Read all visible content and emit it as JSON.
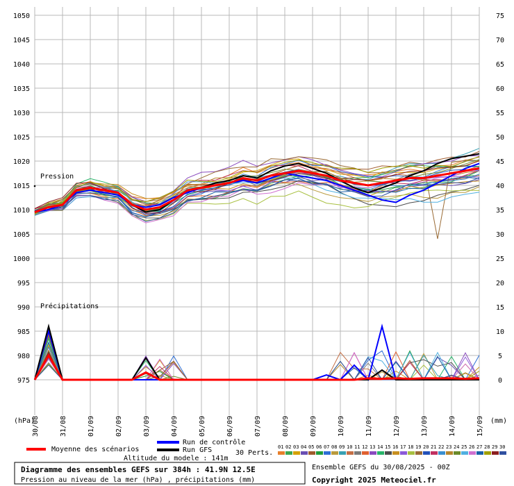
{
  "chart_data": {
    "type": "line",
    "title": "Diagramme des ensembles GEFS sur 384h : 41.9N 12.5E",
    "subtitle": "Pression au niveau de la mer (hPa) , précipitations (mm)",
    "run_info": "Ensemble GEFS du 30/08/2025 - 00Z",
    "copyright": "Copyright 2025 Meteociel.fr",
    "model_altitude": "Altitude du modele : 141m",
    "panel_labels": {
      "pressure": "Pression",
      "precip": "Précipitations"
    },
    "y_left_unit": "(hPa)",
    "y_right_unit": "(mm)",
    "y_left_ticks": [
      975,
      980,
      985,
      990,
      995,
      1000,
      1005,
      1010,
      1015,
      1020,
      1025,
      1030,
      1035,
      1040,
      1045,
      1050
    ],
    "y_right_ticks": [
      0,
      5,
      10,
      15,
      20,
      25,
      30,
      35,
      40,
      45,
      50,
      55,
      60,
      65,
      70,
      75
    ],
    "y_left_range": [
      975,
      1050
    ],
    "y_right_range": [
      0,
      75
    ],
    "x_dates": [
      "30/08",
      "31/08",
      "01/09",
      "02/09",
      "03/09",
      "04/09",
      "05/09",
      "06/09",
      "07/09",
      "08/09",
      "09/09",
      "10/09",
      "11/09",
      "12/09",
      "13/09",
      "14/09",
      "15/09"
    ],
    "grid": true,
    "legend": {
      "mean": "Moyenne des scénarios",
      "control": "Run de contrôle",
      "gfs": "Run GFS",
      "perts": "30 Perts."
    },
    "pert_labels": [
      "01",
      "02",
      "03",
      "04",
      "05",
      "06",
      "07",
      "08",
      "09",
      "10",
      "11",
      "12",
      "13",
      "14",
      "15",
      "16",
      "17",
      "18",
      "19",
      "20",
      "21",
      "22",
      "23",
      "24",
      "25",
      "26",
      "27",
      "28",
      "29",
      "30"
    ],
    "pert_colors": [
      "#e87f2b",
      "#3ca650",
      "#d4a100",
      "#6a4fb3",
      "#a05a2c",
      "#1f9c3a",
      "#2d6fd6",
      "#b99a3d",
      "#38a0b3",
      "#c46f46",
      "#7a7a7a",
      "#e06030",
      "#8a4bbf",
      "#28b46a",
      "#4d4d4d",
      "#c89020",
      "#8c5ad8",
      "#a8c040",
      "#9a6b35",
      "#2250b8",
      "#c03060",
      "#3a8fd0",
      "#b6862c",
      "#6c8a2a",
      "#50b0e0",
      "#d070d0",
      "#1a5fa8",
      "#a0a000",
      "#8b1f1f",
      "#3050a0"
    ],
    "series_colors": {
      "mean": "#ff0000",
      "control": "#0000ff",
      "gfs": "#000000"
    },
    "series": [
      {
        "name": "Moyenne des scénarios",
        "pressure": [
          1009.5,
          1010.5,
          1011,
          1014,
          1014.5,
          1014,
          1013.5,
          1011,
          1010,
          1010.5,
          1012,
          1014,
          1014.5,
          1015,
          1015.5,
          1016.5,
          1016,
          1017,
          1017.5,
          1018,
          1017.5,
          1017,
          1016,
          1015.5,
          1015,
          1015.5,
          1016,
          1016.5,
          1016.5,
          1017,
          1017.5,
          1018,
          1018.5
        ],
        "precip": [
          0,
          5,
          0,
          0,
          0,
          0,
          0,
          0,
          1.5,
          0,
          0,
          0,
          0,
          0,
          0,
          0,
          0,
          0,
          0,
          0,
          0,
          0,
          0,
          0,
          0.3,
          0.2,
          0.3,
          0.2,
          0.3,
          0.3,
          0.3,
          0.2,
          0.3
        ]
      },
      {
        "name": "Run de contrôle",
        "pressure": [
          1009.5,
          1010,
          1011,
          1013.5,
          1014,
          1013.5,
          1013,
          1011,
          1010.5,
          1011,
          1012.5,
          1013.5,
          1014.5,
          1015,
          1015.5,
          1016,
          1015.5,
          1016.5,
          1017.5,
          1017,
          1016.5,
          1016,
          1015,
          1014,
          1013,
          1012,
          1011.5,
          1013,
          1014,
          1015.5,
          1017,
          1018.5,
          1019.5
        ],
        "precip": [
          0,
          10,
          0,
          0,
          0,
          0,
          0,
          0,
          0,
          0,
          0,
          0,
          0,
          0,
          0,
          0,
          0,
          0,
          0,
          0,
          0,
          1,
          0,
          3,
          0,
          11,
          0,
          0,
          0,
          0,
          0,
          0,
          0
        ]
      },
      {
        "name": "Run GFS",
        "pressure": [
          1009.5,
          1010.5,
          1011,
          1014,
          1014.5,
          1014,
          1013.5,
          1011,
          1009.5,
          1010,
          1012,
          1014,
          1014.5,
          1015.5,
          1016,
          1017,
          1016.5,
          1018,
          1019,
          1019.5,
          1018.5,
          1017.5,
          1016,
          1014.5,
          1013.5,
          1014.5,
          1015.5,
          1017,
          1018,
          1019.5,
          1020.5,
          1021,
          1021.5
        ],
        "precip": [
          0,
          11,
          0,
          0,
          0,
          0,
          0,
          0,
          4.5,
          0,
          0,
          0,
          0,
          0,
          0,
          0,
          0,
          0,
          0,
          0,
          0,
          0,
          0,
          0,
          0,
          2,
          0,
          0,
          0,
          0,
          0,
          0,
          0
        ]
      }
    ]
  }
}
